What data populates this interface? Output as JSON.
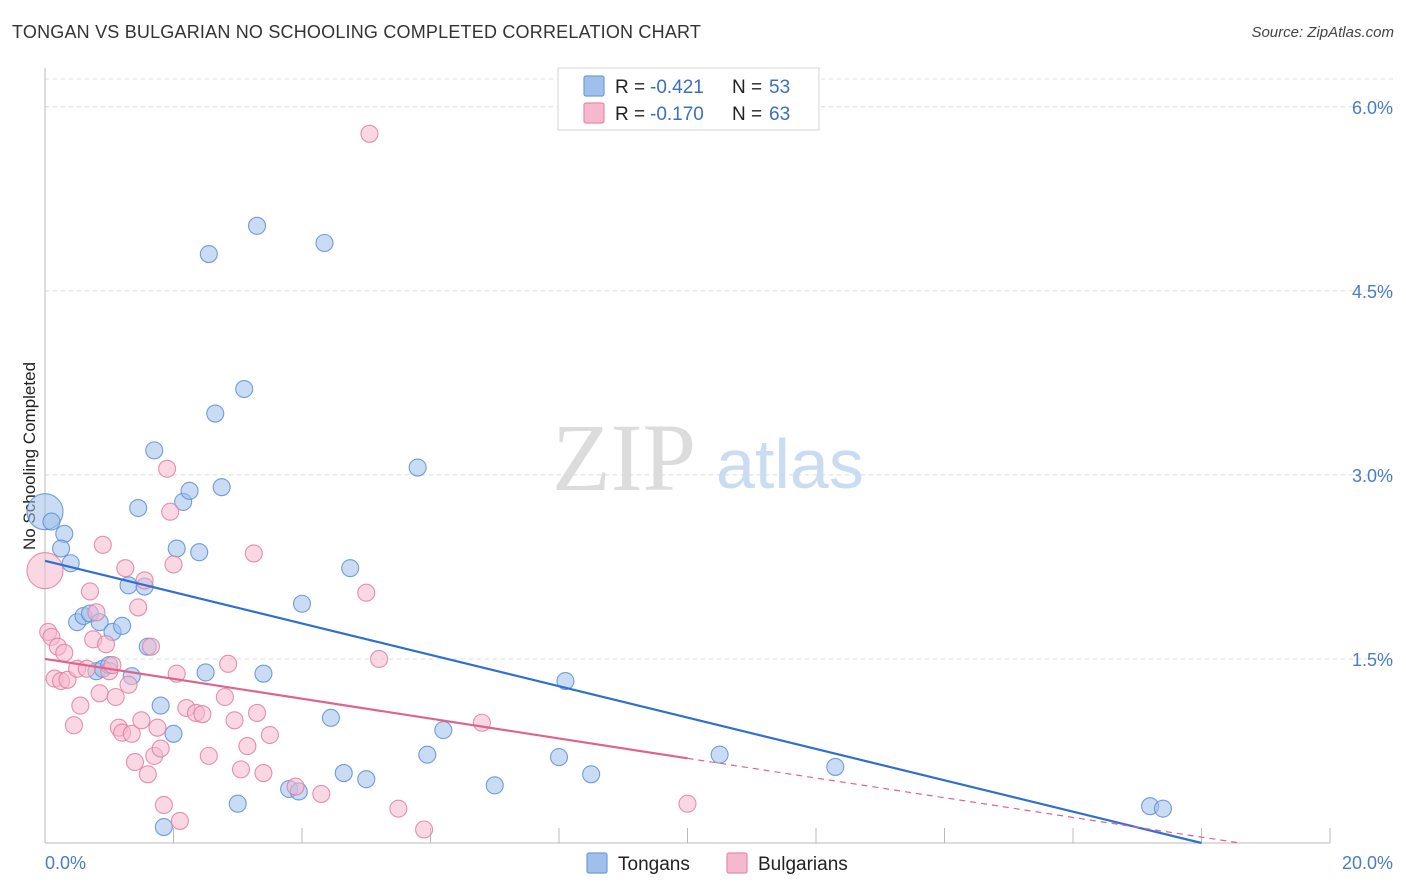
{
  "title": "TONGAN VS BULGARIAN NO SCHOOLING COMPLETED CORRELATION CHART",
  "source": "Source: ZipAtlas.com",
  "watermark": {
    "zip": "ZIP",
    "atlas": "atlas"
  },
  "chart_data": {
    "type": "scatter",
    "title": "TONGAN VS BULGARIAN NO SCHOOLING COMPLETED CORRELATION CHART",
    "ylabel": "No Schooling Completed",
    "xlabel": "",
    "xlim": [
      0,
      20
    ],
    "ylim": [
      0,
      6.3
    ],
    "x_tick_labels": [
      {
        "v": 0,
        "label": "0.0%"
      },
      {
        "v": 20,
        "label": "20.0%"
      }
    ],
    "y_tick_labels": [
      {
        "v": 1.5,
        "label": "1.5%"
      },
      {
        "v": 3.0,
        "label": "3.0%"
      },
      {
        "v": 4.5,
        "label": "4.5%"
      },
      {
        "v": 6.0,
        "label": "6.0%"
      }
    ],
    "stats_legend": [
      {
        "r_label": "R = ",
        "r": "-0.421",
        "n_label": "N = ",
        "n": "53",
        "color": "#9ec0ea",
        "stroke": "#6e9ddb"
      },
      {
        "r_label": "R = ",
        "r": "-0.170",
        "n_label": "N = ",
        "n": "63",
        "color": "#f6b8cc",
        "stroke": "#e88aa9"
      }
    ],
    "series": [
      {
        "name": "Tongans",
        "color": "#9ec0ea",
        "stroke": "#5a8ed6",
        "line_color": "#2f6fd1",
        "trend": {
          "x0": 0,
          "y0": 2.3,
          "x1": 18.0,
          "y1": 0.0
        },
        "points": [
          {
            "x": 0.0,
            "y": 2.7,
            "big": true
          },
          {
            "x": 0.1,
            "y": 2.62
          },
          {
            "x": 0.3,
            "y": 2.52
          },
          {
            "x": 0.25,
            "y": 2.4
          },
          {
            "x": 0.4,
            "y": 2.28
          },
          {
            "x": 0.5,
            "y": 1.8
          },
          {
            "x": 0.6,
            "y": 1.85
          },
          {
            "x": 0.7,
            "y": 1.87
          },
          {
            "x": 0.8,
            "y": 1.4
          },
          {
            "x": 0.85,
            "y": 1.8
          },
          {
            "x": 0.9,
            "y": 1.42
          },
          {
            "x": 1.0,
            "y": 1.45
          },
          {
            "x": 1.05,
            "y": 1.72
          },
          {
            "x": 1.2,
            "y": 1.77
          },
          {
            "x": 1.3,
            "y": 2.1
          },
          {
            "x": 1.35,
            "y": 1.36
          },
          {
            "x": 1.45,
            "y": 2.73
          },
          {
            "x": 1.55,
            "y": 2.09
          },
          {
            "x": 1.6,
            "y": 1.6
          },
          {
            "x": 1.7,
            "y": 3.2
          },
          {
            "x": 1.8,
            "y": 1.12
          },
          {
            "x": 1.85,
            "y": 0.13
          },
          {
            "x": 2.0,
            "y": 0.89
          },
          {
            "x": 2.05,
            "y": 2.4
          },
          {
            "x": 2.15,
            "y": 2.78
          },
          {
            "x": 2.25,
            "y": 2.87
          },
          {
            "x": 2.4,
            "y": 2.37
          },
          {
            "x": 2.5,
            "y": 1.39
          },
          {
            "x": 2.55,
            "y": 4.8
          },
          {
            "x": 2.65,
            "y": 3.5
          },
          {
            "x": 2.75,
            "y": 2.9
          },
          {
            "x": 3.0,
            "y": 0.32
          },
          {
            "x": 3.1,
            "y": 3.7
          },
          {
            "x": 3.3,
            "y": 5.03
          },
          {
            "x": 3.4,
            "y": 1.38
          },
          {
            "x": 3.8,
            "y": 0.44
          },
          {
            "x": 3.95,
            "y": 0.42
          },
          {
            "x": 4.0,
            "y": 1.95
          },
          {
            "x": 4.35,
            "y": 4.89
          },
          {
            "x": 4.45,
            "y": 1.02
          },
          {
            "x": 4.65,
            "y": 0.57
          },
          {
            "x": 4.75,
            "y": 2.24
          },
          {
            "x": 5.0,
            "y": 0.52
          },
          {
            "x": 5.8,
            "y": 3.06
          },
          {
            "x": 5.95,
            "y": 0.72
          },
          {
            "x": 6.2,
            "y": 0.92
          },
          {
            "x": 7.0,
            "y": 0.47
          },
          {
            "x": 8.0,
            "y": 0.7
          },
          {
            "x": 8.1,
            "y": 1.32
          },
          {
            "x": 8.5,
            "y": 0.56
          },
          {
            "x": 10.5,
            "y": 0.72
          },
          {
            "x": 12.3,
            "y": 0.62
          },
          {
            "x": 17.2,
            "y": 0.3
          },
          {
            "x": 17.4,
            "y": 0.28
          }
        ]
      },
      {
        "name": "Bulgarians",
        "color": "#f6b8cc",
        "stroke": "#e07ea0",
        "line_color": "#e0638e",
        "trend": {
          "x0": 0,
          "y0": 1.5,
          "x1": 10.0,
          "y1": 0.69
        },
        "trend_dashed": {
          "x0": 10.0,
          "y0": 0.69,
          "x1": 18.6,
          "y1": 0.0
        },
        "points": [
          {
            "x": 0.0,
            "y": 2.22,
            "big": true
          },
          {
            "x": 0.05,
            "y": 1.72
          },
          {
            "x": 0.1,
            "y": 1.68
          },
          {
            "x": 0.15,
            "y": 1.34
          },
          {
            "x": 0.2,
            "y": 1.6
          },
          {
            "x": 0.25,
            "y": 1.32
          },
          {
            "x": 0.3,
            "y": 1.55
          },
          {
            "x": 0.35,
            "y": 1.33
          },
          {
            "x": 0.45,
            "y": 0.96
          },
          {
            "x": 0.5,
            "y": 1.42
          },
          {
            "x": 0.55,
            "y": 1.12
          },
          {
            "x": 0.65,
            "y": 1.42
          },
          {
            "x": 0.7,
            "y": 2.05
          },
          {
            "x": 0.75,
            "y": 1.66
          },
          {
            "x": 0.8,
            "y": 1.88
          },
          {
            "x": 0.85,
            "y": 1.22
          },
          {
            "x": 0.9,
            "y": 2.43
          },
          {
            "x": 0.95,
            "y": 1.62
          },
          {
            "x": 1.0,
            "y": 1.4
          },
          {
            "x": 1.05,
            "y": 1.45
          },
          {
            "x": 1.1,
            "y": 1.19
          },
          {
            "x": 1.15,
            "y": 0.94
          },
          {
            "x": 1.2,
            "y": 0.9
          },
          {
            "x": 1.25,
            "y": 2.24
          },
          {
            "x": 1.3,
            "y": 1.29
          },
          {
            "x": 1.35,
            "y": 0.89
          },
          {
            "x": 1.4,
            "y": 0.66
          },
          {
            "x": 1.45,
            "y": 1.92
          },
          {
            "x": 1.5,
            "y": 1.0
          },
          {
            "x": 1.55,
            "y": 2.14
          },
          {
            "x": 1.6,
            "y": 0.56
          },
          {
            "x": 1.65,
            "y": 1.6
          },
          {
            "x": 1.7,
            "y": 0.71
          },
          {
            "x": 1.75,
            "y": 0.94
          },
          {
            "x": 1.8,
            "y": 0.77
          },
          {
            "x": 1.85,
            "y": 0.31
          },
          {
            "x": 1.9,
            "y": 3.05
          },
          {
            "x": 1.95,
            "y": 2.7
          },
          {
            "x": 2.0,
            "y": 2.27
          },
          {
            "x": 2.05,
            "y": 1.38
          },
          {
            "x": 2.1,
            "y": 0.18
          },
          {
            "x": 2.2,
            "y": 1.1
          },
          {
            "x": 2.35,
            "y": 1.06
          },
          {
            "x": 2.45,
            "y": 1.05
          },
          {
            "x": 2.55,
            "y": 0.71
          },
          {
            "x": 2.8,
            "y": 1.19
          },
          {
            "x": 2.85,
            "y": 1.46
          },
          {
            "x": 2.95,
            "y": 1.0
          },
          {
            "x": 3.05,
            "y": 0.6
          },
          {
            "x": 3.15,
            "y": 0.79
          },
          {
            "x": 3.25,
            "y": 2.36
          },
          {
            "x": 3.3,
            "y": 1.06
          },
          {
            "x": 3.4,
            "y": 0.57
          },
          {
            "x": 3.5,
            "y": 0.88
          },
          {
            "x": 3.9,
            "y": 0.46
          },
          {
            "x": 4.3,
            "y": 0.4
          },
          {
            "x": 5.0,
            "y": 2.04
          },
          {
            "x": 5.05,
            "y": 5.78
          },
          {
            "x": 5.5,
            "y": 0.28
          },
          {
            "x": 5.9,
            "y": 0.11
          },
          {
            "x": 6.8,
            "y": 0.98
          },
          {
            "x": 10.0,
            "y": 0.32
          },
          {
            "x": 5.2,
            "y": 1.5
          }
        ]
      }
    ],
    "legend_labels": [
      "Tongans",
      "Bulgarians"
    ]
  }
}
